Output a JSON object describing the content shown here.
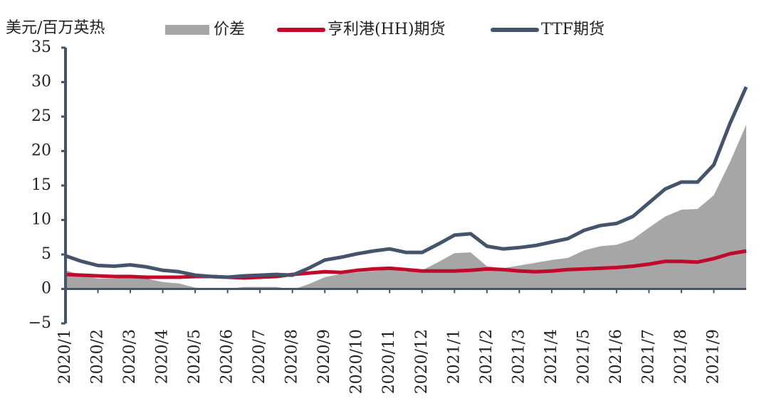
{
  "chart_data": {
    "type": "line",
    "y_label": "美元/百万英热",
    "categories": [
      "2020/1",
      null,
      "2020/2",
      null,
      "2020/3",
      null,
      "2020/4",
      null,
      "2020/5",
      null,
      "2020/6",
      null,
      "2020/7",
      null,
      "2020/8",
      null,
      "2020/9",
      null,
      "2020/10",
      null,
      "2020/11",
      null,
      "2020/12",
      null,
      "2021/1",
      null,
      "2021/2",
      null,
      "2021/3",
      null,
      "2021/4",
      null,
      "2021/5",
      null,
      "2021/6",
      null,
      "2021/7",
      null,
      "2021/8",
      null,
      "2021/9",
      null,
      null
    ],
    "series": [
      {
        "name": "价差",
        "kind": "area",
        "color": "#a6a6a6",
        "values": [
          2.7,
          2.0,
          1.5,
          1.5,
          1.7,
          1.5,
          1.0,
          0.8,
          0.2,
          0.0,
          0.0,
          0.3,
          0.3,
          0.3,
          -0.1,
          0.7,
          1.7,
          2.2,
          2.4,
          2.6,
          2.8,
          2.5,
          2.7,
          3.9,
          5.2,
          5.3,
          3.3,
          3.0,
          3.4,
          3.8,
          4.2,
          4.5,
          5.6,
          6.2,
          6.4,
          7.2,
          8.9,
          10.5,
          11.5,
          11.6,
          13.6,
          18.4,
          23.8
        ]
      },
      {
        "name": "亨利港(HH)期货",
        "kind": "line",
        "color": "#c0092c",
        "values": [
          2.1,
          2.0,
          1.9,
          1.8,
          1.8,
          1.7,
          1.7,
          1.7,
          1.8,
          1.8,
          1.7,
          1.6,
          1.7,
          1.8,
          2.1,
          2.3,
          2.5,
          2.4,
          2.7,
          2.9,
          3.0,
          2.8,
          2.6,
          2.6,
          2.6,
          2.7,
          2.9,
          2.8,
          2.6,
          2.5,
          2.6,
          2.8,
          2.9,
          3.0,
          3.1,
          3.3,
          3.6,
          4.0,
          4.0,
          3.9,
          4.4,
          5.1,
          5.5
        ]
      },
      {
        "name": "TTF期货",
        "kind": "line",
        "color": "#44546a",
        "values": [
          4.8,
          4.0,
          3.4,
          3.3,
          3.5,
          3.2,
          2.7,
          2.5,
          2.0,
          1.8,
          1.7,
          1.9,
          2.0,
          2.1,
          2.0,
          3.0,
          4.2,
          4.6,
          5.1,
          5.5,
          5.8,
          5.3,
          5.3,
          6.5,
          7.8,
          8.0,
          6.2,
          5.8,
          6.0,
          6.3,
          6.8,
          7.3,
          8.5,
          9.2,
          9.5,
          10.5,
          12.5,
          14.5,
          15.5,
          15.5,
          18.0,
          24.0,
          29.3
        ]
      }
    ],
    "ylim": [
      -5,
      35
    ],
    "yticks": [
      {
        "value": -5,
        "label": "−5"
      },
      0,
      5,
      10,
      15,
      20,
      25,
      30,
      35
    ]
  }
}
